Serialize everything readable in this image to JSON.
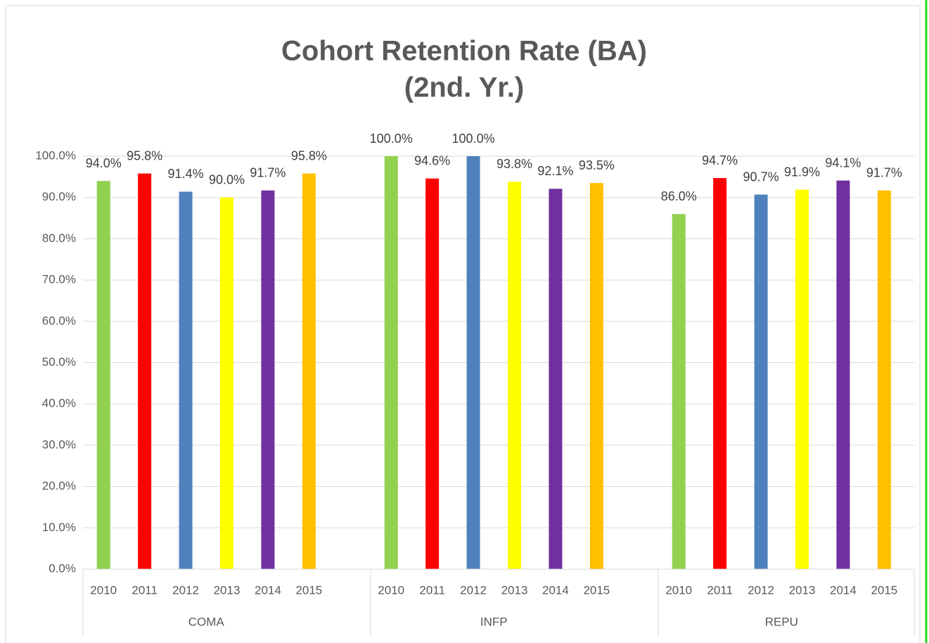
{
  "chart_data": {
    "type": "bar",
    "title": "Cohort Retention Rate (BA)",
    "subtitle": "(2nd. Yr.)",
    "categories": [
      "COMA",
      "INFP",
      "REPU"
    ],
    "series": [
      {
        "name": "2010",
        "color": "#92d050",
        "values": [
          94.0,
          100.0,
          86.0
        ],
        "value_labels": [
          "94.0%",
          "100.0%",
          "86.0%"
        ]
      },
      {
        "name": "2011",
        "color": "#ff0000",
        "values": [
          95.8,
          94.6,
          94.7
        ],
        "value_labels": [
          "95.8%",
          "94.6%",
          "94.7%"
        ]
      },
      {
        "name": "2012",
        "color": "#4f81bd",
        "values": [
          91.4,
          100.0,
          90.7
        ],
        "value_labels": [
          "91.4%",
          "100.0%",
          "90.7%"
        ]
      },
      {
        "name": "2013",
        "color": "#ffff00",
        "values": [
          90.0,
          93.8,
          91.9
        ],
        "value_labels": [
          "90.0%",
          "93.8%",
          "91.9%"
        ]
      },
      {
        "name": "2014",
        "color": "#7030a0",
        "values": [
          91.7,
          92.1,
          94.1
        ],
        "value_labels": [
          "91.7%",
          "92.1%",
          "94.1%"
        ]
      },
      {
        "name": "2015",
        "color": "#ffc000",
        "values": [
          95.8,
          93.5,
          91.7
        ],
        "value_labels": [
          "95.8%",
          "93.5%",
          "91.7%"
        ]
      }
    ],
    "ylim": [
      0,
      100
    ],
    "yticks": [
      {
        "value": 0,
        "label": "0.0%"
      },
      {
        "value": 10,
        "label": "10.0%"
      },
      {
        "value": 20,
        "label": "20.0%"
      },
      {
        "value": 30,
        "label": "30.0%"
      },
      {
        "value": 40,
        "label": "40.0%"
      },
      {
        "value": 50,
        "label": "50.0%"
      },
      {
        "value": 60,
        "label": "60.0%"
      },
      {
        "value": 70,
        "label": "70.0%"
      },
      {
        "value": 80,
        "label": "80.0%"
      },
      {
        "value": 90,
        "label": "90.0%"
      },
      {
        "value": 100,
        "label": "100.0%"
      }
    ],
    "grid": true
  }
}
